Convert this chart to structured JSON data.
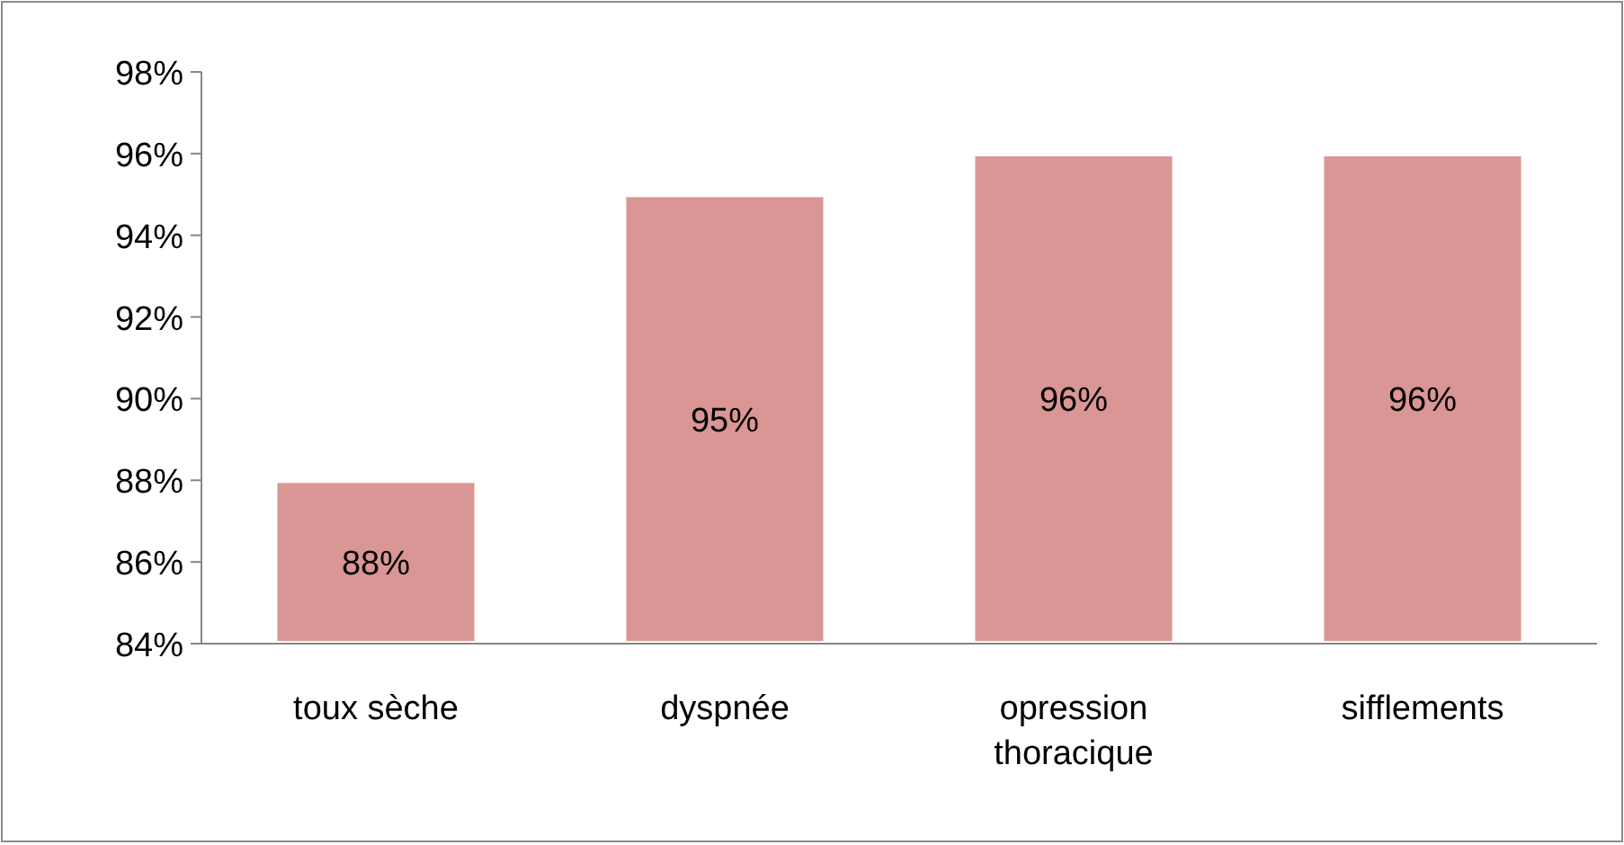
{
  "chart_data": {
    "type": "bar",
    "categories": [
      "toux sèche",
      "dyspnée",
      "opression thoracique",
      "sifflements"
    ],
    "values": [
      88,
      95,
      96,
      96
    ],
    "color": "#d99694",
    "value_labels": [
      "88%",
      "95%",
      "96%",
      "96%"
    ],
    "ylim": [
      84,
      98
    ],
    "yticks": [
      {
        "value": 84,
        "label": "84%"
      },
      {
        "value": 86,
        "label": "86%"
      },
      {
        "value": 88,
        "label": "88%"
      },
      {
        "value": 90,
        "label": "90%"
      },
      {
        "value": 92,
        "label": "92%"
      },
      {
        "value": 94,
        "label": "94%"
      },
      {
        "value": 96,
        "label": "96%"
      },
      {
        "value": 98,
        "label": "98%"
      }
    ],
    "grid": false
  }
}
